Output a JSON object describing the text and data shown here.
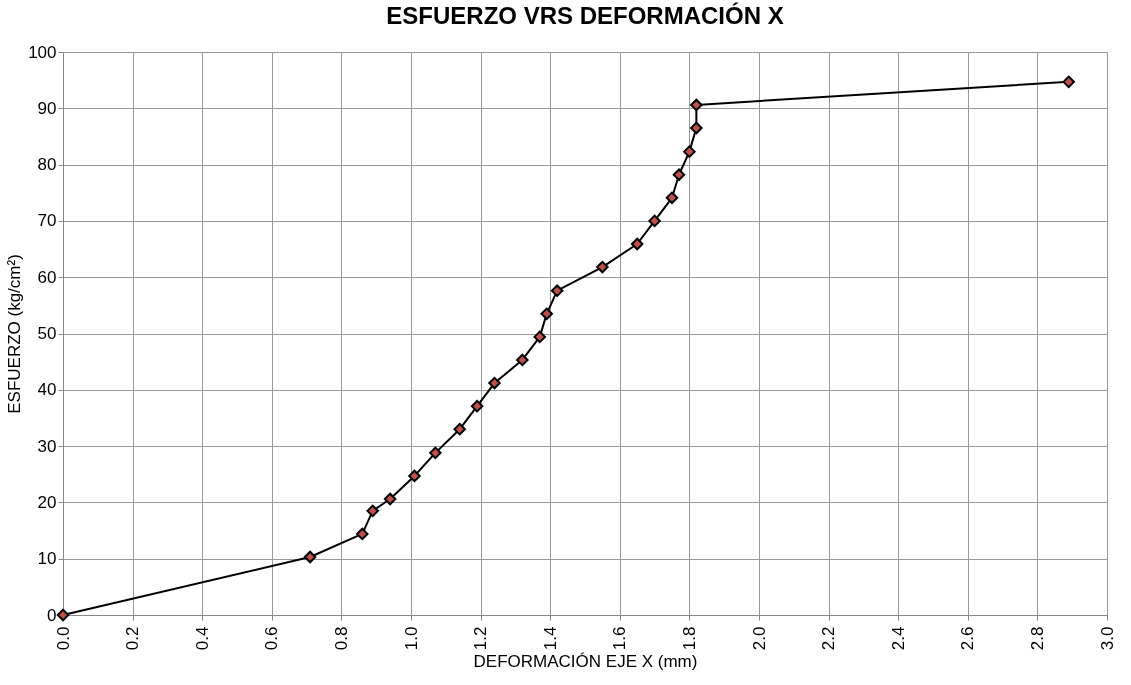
{
  "chart_data": {
    "type": "line",
    "title": "ESFUERZO VRS DEFORMACIÓN X",
    "xlabel": "DEFORMACIÓN EJE X (mm)",
    "ylabel": "ESFUERZO (kg/cm²)",
    "x": [
      0,
      0.71,
      0.86,
      0.89,
      0.94,
      1.01,
      1.07,
      1.14,
      1.19,
      1.24,
      1.32,
      1.37,
      1.39,
      1.42,
      1.55,
      1.65,
      1.7,
      1.75,
      1.77,
      1.8,
      1.82,
      1.82,
      2.89
    ],
    "series": [
      {
        "color": "#c0504d",
        "values": [
          0,
          10.3,
          14.4,
          18.5,
          20.6,
          24.7,
          28.8,
          33,
          37.1,
          41.2,
          45.3,
          49.4,
          53.5,
          57.6,
          61.8,
          65.9,
          70,
          74.1,
          78.2,
          82.3,
          86.5,
          90.6,
          94.7
        ]
      }
    ],
    "xlim": [
      0,
      3
    ],
    "xticks": [
      {
        "value": 0,
        "label": "0.0"
      },
      {
        "value": 0.2,
        "label": "0.2"
      },
      {
        "value": 0.4,
        "label": "0.4"
      },
      {
        "value": 0.6,
        "label": "0.6"
      },
      {
        "value": 0.8,
        "label": "0.8"
      },
      {
        "value": 1,
        "label": "1.0"
      },
      {
        "value": 1.2,
        "label": "1.2"
      },
      {
        "value": 1.4,
        "label": "1.4"
      },
      {
        "value": 1.6,
        "label": "1.6"
      },
      {
        "value": 1.8,
        "label": "1.8"
      },
      {
        "value": 2,
        "label": "2.0"
      },
      {
        "value": 2.2,
        "label": "2.2"
      },
      {
        "value": 2.4,
        "label": "2.4"
      },
      {
        "value": 2.6,
        "label": "2.6"
      },
      {
        "value": 2.8,
        "label": "2.8"
      },
      {
        "value": 3,
        "label": "3.0"
      }
    ],
    "ylim": [
      0,
      100
    ],
    "yticks": [
      0,
      10,
      20,
      30,
      40,
      50,
      60,
      70,
      80,
      90,
      100
    ],
    "grid": true,
    "marker": "diamond",
    "line_style": "solid"
  }
}
